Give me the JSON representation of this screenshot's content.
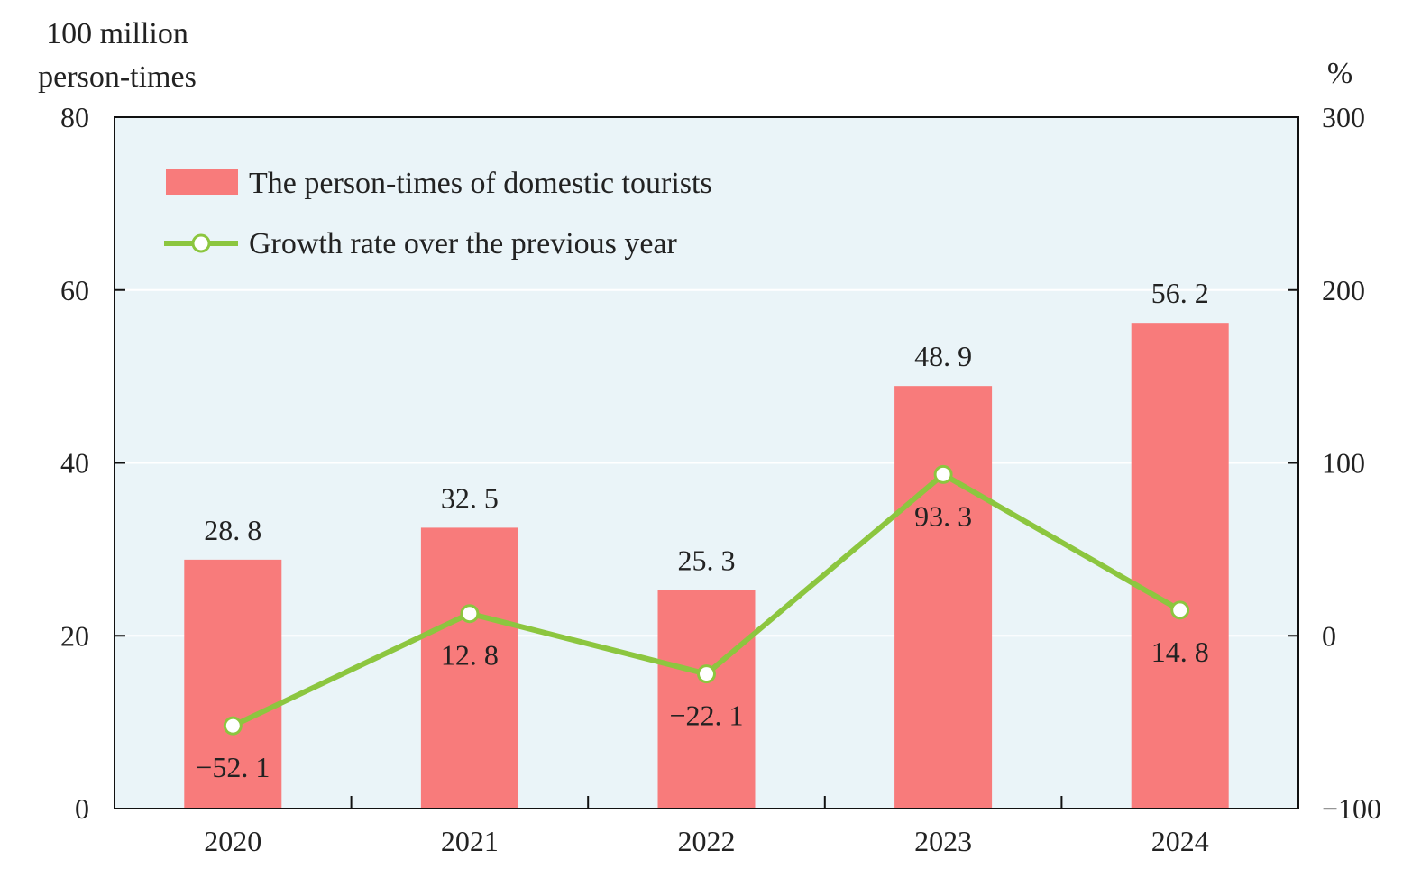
{
  "chart_data": {
    "type": "bar",
    "categories": [
      "2020",
      "2021",
      "2022",
      "2023",
      "2024"
    ],
    "series": [
      {
        "name": "The person-times of domestic tourists",
        "type": "bar",
        "axis": "left",
        "values": [
          28.8,
          32.5,
          25.3,
          48.9,
          56.2
        ],
        "labels": [
          "28. 8",
          "32. 5",
          "25. 3",
          "48. 9",
          "56. 2"
        ]
      },
      {
        "name": "Growth rate over the previous year",
        "type": "line",
        "axis": "right",
        "values": [
          -52.1,
          12.8,
          -22.1,
          93.3,
          14.8
        ],
        "labels": [
          "−52. 1",
          "12. 8",
          "−22. 1",
          "93. 3",
          "14. 8"
        ]
      }
    ],
    "y_left": {
      "label_line1": "100 million",
      "label_line2": "person-times",
      "ylim": [
        0,
        80
      ],
      "ticks": [
        "0",
        "20",
        "40",
        "60",
        "80"
      ]
    },
    "y_right": {
      "label": "%",
      "ylim": [
        -100,
        300
      ],
      "ticks": [
        "−100",
        "0",
        "100",
        "200",
        "300"
      ]
    },
    "grid": true,
    "legend_position": "top-left",
    "colors": {
      "bar": "#f87b7b",
      "line": "#8cc63f",
      "plot_bg": "#eaf4f8",
      "grid": "#ffffff",
      "axis": "#111111"
    }
  }
}
